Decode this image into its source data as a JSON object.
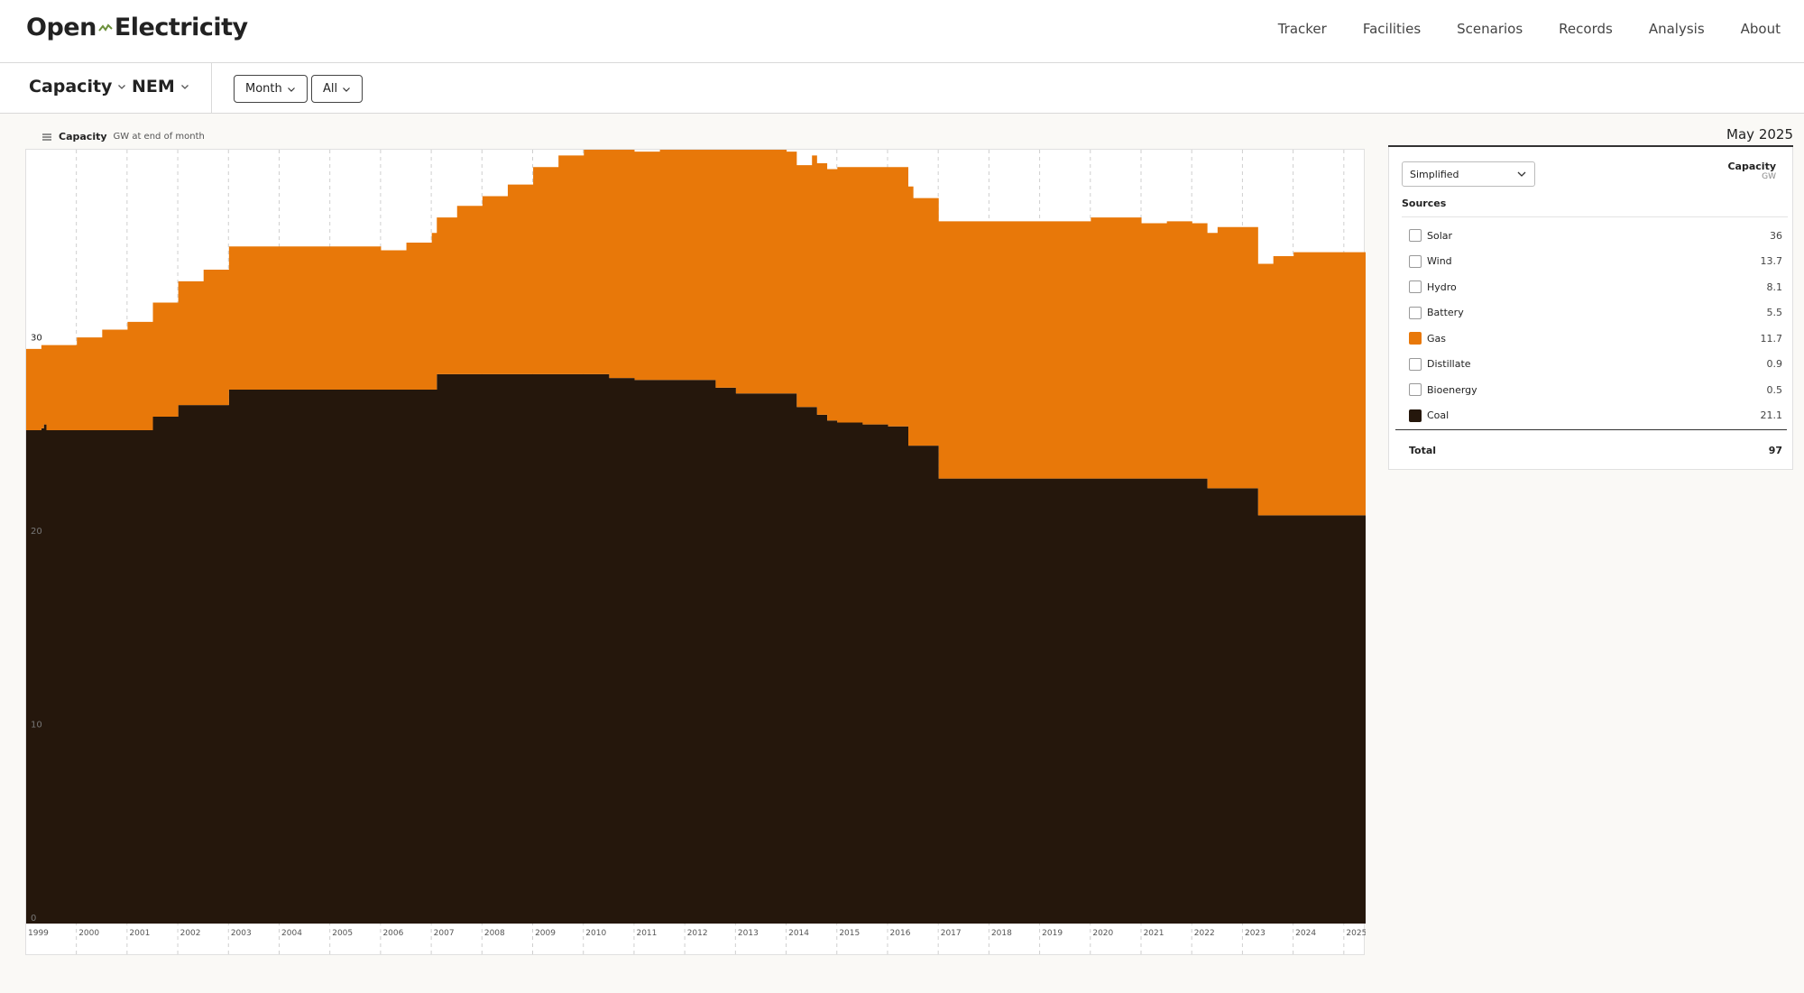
{
  "app": {
    "logo_left": "Open",
    "logo_right": "Electricity"
  },
  "nav": [
    "Tracker",
    "Facilities",
    "Scenarios",
    "Records",
    "Analysis",
    "About"
  ],
  "toolbar": {
    "metric": "Capacity",
    "region": "NEM",
    "interval": "Month",
    "range": "All"
  },
  "chart_header": {
    "title": "Capacity",
    "unit": "GW at end of month"
  },
  "panel": {
    "date": "May 2025",
    "view": "Simplified",
    "col_title": "Capacity",
    "col_unit": "GW",
    "sources_label": "Sources",
    "rows": [
      {
        "label": "Solar",
        "value": "36",
        "color": "#fed500",
        "checked": false
      },
      {
        "label": "Wind",
        "value": "13.7",
        "color": "#2c7629",
        "checked": false
      },
      {
        "label": "Hydro",
        "value": "8.1",
        "color": "#5ea0c0",
        "checked": false
      },
      {
        "label": "Battery",
        "value": "5.5",
        "color": "#3245c8",
        "checked": false
      },
      {
        "label": "Gas",
        "value": "11.7",
        "color": "#e87809",
        "checked": true
      },
      {
        "label": "Distillate",
        "value": "0.9",
        "color": "#c94b51",
        "checked": false
      },
      {
        "label": "Bioenergy",
        "value": "0.5",
        "color": "#1d7a7a",
        "checked": false
      },
      {
        "label": "Coal",
        "value": "21.1",
        "color": "#25170c",
        "checked": true
      }
    ],
    "total_label": "Total",
    "total_value": "97"
  },
  "chart_data": {
    "type": "area",
    "stacked": true,
    "ylim": [
      0,
      40
    ],
    "y_ticks": [
      0,
      10,
      20,
      30
    ],
    "x_ticks": [
      "1999",
      "2000",
      "2001",
      "2002",
      "2003",
      "2004",
      "2005",
      "2006",
      "2007",
      "2008",
      "2009",
      "2010",
      "2011",
      "2012",
      "2013",
      "2014",
      "2015",
      "2016",
      "2017",
      "2018",
      "2019",
      "2020",
      "2021",
      "2022",
      "2023",
      "2024",
      "2025"
    ],
    "x_range": [
      1999.0,
      2025.42
    ],
    "series": [
      {
        "name": "Coal",
        "color": "#25170c",
        "x": [
          1999.0,
          1999.3,
          1999.35,
          1999.4,
          2001.0,
          2001.5,
          2002.0,
          2002.5,
          2003.0,
          2006.1,
          2007.1,
          2008.0,
          2009.0,
          2010.2,
          2010.5,
          2011.0,
          2012.4,
          2012.6,
          2013.0,
          2014.0,
          2014.2,
          2014.6,
          2014.8,
          2015.0,
          2015.5,
          2016.0,
          2016.4,
          2017.0,
          2018.0,
          2019.0,
          2021.0,
          2022.0,
          2022.3,
          2023.0,
          2023.3,
          2025.42
        ],
        "y": [
          25.5,
          25.6,
          25.8,
          25.5,
          25.5,
          26.2,
          26.8,
          26.8,
          27.6,
          27.6,
          28.4,
          28.4,
          28.4,
          28.4,
          28.2,
          28.1,
          28.1,
          27.7,
          27.4,
          27.4,
          26.7,
          26.3,
          26.0,
          25.9,
          25.8,
          25.7,
          24.7,
          23.0,
          23.0,
          23.0,
          23.0,
          23.0,
          22.5,
          22.5,
          21.1,
          21.1
        ]
      },
      {
        "name": "Gas",
        "color": "#e87809",
        "x": [
          1999.0,
          1999.3,
          1999.35,
          1999.4,
          2000.0,
          2000.5,
          2001.0,
          2001.5,
          2002.0,
          2002.5,
          2003.0,
          2004.0,
          2005.0,
          2006.0,
          2006.5,
          2007.0,
          2007.5,
          2008.0,
          2008.5,
          2009.0,
          2009.5,
          2010.0,
          2010.5,
          2011.0,
          2011.5,
          2012.0,
          2012.5,
          2013.0,
          2013.5,
          2014.0,
          2014.5,
          2015.0,
          2015.5,
          2016.0,
          2016.5,
          2017.0,
          2018.0,
          2019.0,
          2020.0,
          2021.0,
          2021.5,
          2022.0,
          2022.5,
          2023.0,
          2023.3,
          2023.6,
          2024.0,
          2024.5,
          2025.0,
          2025.42
        ],
        "y": [
          4.2,
          4.3,
          4.1,
          4.4,
          4.8,
          5.2,
          5.6,
          5.9,
          6.4,
          7.0,
          7.4,
          7.4,
          7.4,
          7.2,
          7.6,
          8.1,
          8.7,
          9.2,
          9.8,
          10.7,
          11.3,
          11.6,
          11.9,
          11.8,
          12.1,
          12.4,
          12.3,
          12.6,
          12.6,
          12.5,
          13.0,
          13.2,
          13.3,
          13.4,
          12.8,
          13.3,
          13.3,
          13.3,
          13.5,
          13.2,
          13.3,
          13.2,
          13.5,
          13.5,
          13.0,
          13.4,
          13.6,
          13.6,
          13.6,
          11.7
        ]
      }
    ]
  }
}
